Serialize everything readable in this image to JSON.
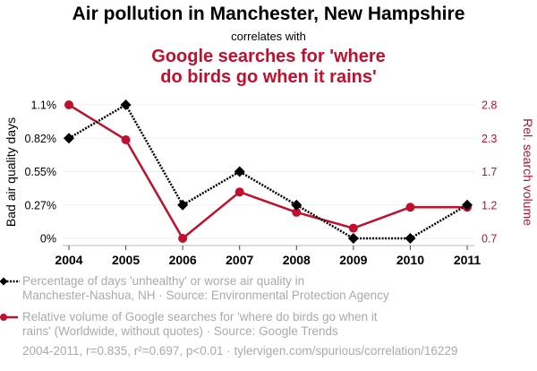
{
  "header": {
    "title": "Air pollution in Manchester, New Hampshire",
    "subtitle": "correlates with",
    "title2_line1": "Google searches for 'where",
    "title2_line2": "do birds go when it rains'"
  },
  "colors": {
    "series1": "#000000",
    "series2": "#c0102e",
    "legend_text": "#aaaaaa",
    "grid": "#f0f0f0"
  },
  "legend": {
    "series1_line1": "Percentage of days 'unhealthy' or worse air quality in",
    "series1_line2": "Manchester-Nashua, NH · Source: Environmental Protection Agency",
    "series2_line1": "Relative volume of Google searches for 'where do birds go when it",
    "series2_line2": "rains' (Worldwide, without quotes) · Source: Google Trends"
  },
  "footer": "2004-2011, r=0.835, r²=0.697, p<0.01 · tylervigen.com/spurious/correlation/16229",
  "chart_data": {
    "type": "line",
    "title": "Air pollution in Manchester, New Hampshire correlates with Google searches for 'where do birds go when it rains'",
    "x": [
      "2004",
      "2005",
      "2006",
      "2007",
      "2008",
      "2009",
      "2010",
      "2011"
    ],
    "xlabel": "",
    "ylabel": "Bad air quality days",
    "y2label": "Rel. search volume",
    "ylim": [
      0,
      1.096
    ],
    "y2lim": [
      0.7,
      2.8
    ],
    "yticks": [
      0,
      0.274,
      0.548,
      0.822,
      1.096
    ],
    "yticklabels": [
      "0%",
      "0.27%",
      "0.55%",
      "0.82%",
      "1.1%"
    ],
    "y2ticks": [
      0.7,
      1.2,
      1.7,
      2.3,
      2.8
    ],
    "y2ticklabels": [
      "0.7",
      "1.2",
      "1.7",
      "2.3",
      "2.8"
    ],
    "grid": true,
    "legend_position": "bottom",
    "series": [
      {
        "name": "Percentage of days 'unhealthy' or worse air quality in Manchester-Nashua, NH",
        "axis": "left",
        "style": "dotted",
        "marker": "diamond",
        "values": [
          0.822,
          1.096,
          0.274,
          0.548,
          0.274,
          0,
          0,
          0.274
        ]
      },
      {
        "name": "Relative volume of Google searches for 'where do birds go when it rains'",
        "axis": "right",
        "style": "solid",
        "marker": "circle",
        "values": [
          2.8,
          2.25,
          0.7,
          1.43,
          1.11,
          0.86,
          1.19,
          1.19
        ]
      }
    ]
  }
}
